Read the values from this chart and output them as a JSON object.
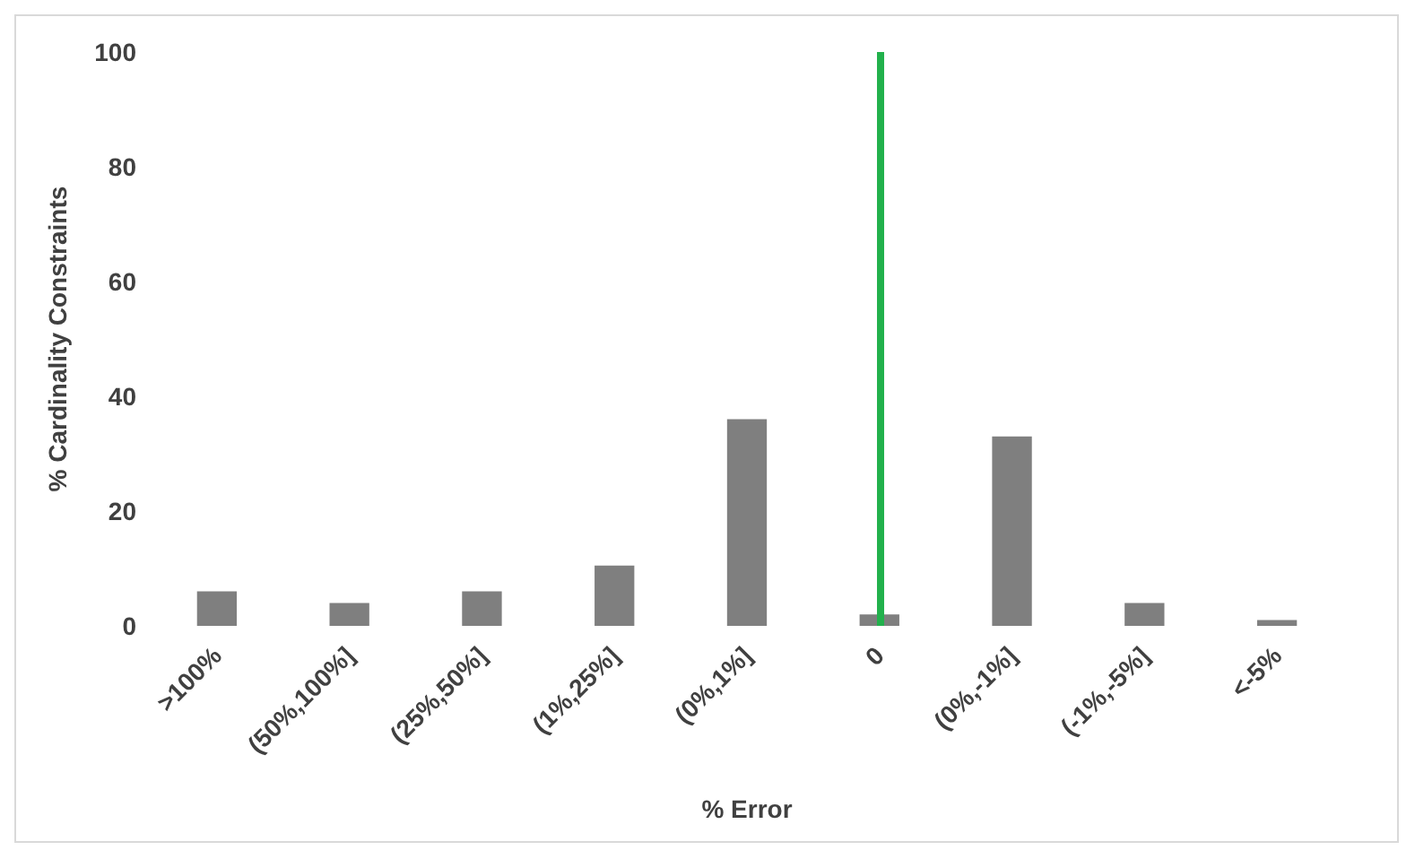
{
  "chart_data": {
    "type": "bar",
    "xlabel": "% Error",
    "ylabel": "% Cardinality Constraints",
    "categories": [
      ">100%",
      "(50%,100%]",
      "(25%,50%]",
      "(1%,25%]",
      "(0%,1%]",
      "0",
      "(0%,-1%]",
      "(-1%,-5%]",
      "<-5%"
    ],
    "series": [
      {
        "color": "#7f7f7f",
        "values": [
          6,
          4,
          6,
          10.5,
          36,
          2,
          33,
          4,
          1
        ]
      }
    ],
    "ylim": [
      0,
      100
    ],
    "yticks": [
      0,
      20,
      40,
      60,
      80,
      100
    ],
    "grid": false,
    "ref_lines": [
      {
        "axis": "x",
        "value": "0",
        "color": "#22b14c"
      }
    ]
  }
}
